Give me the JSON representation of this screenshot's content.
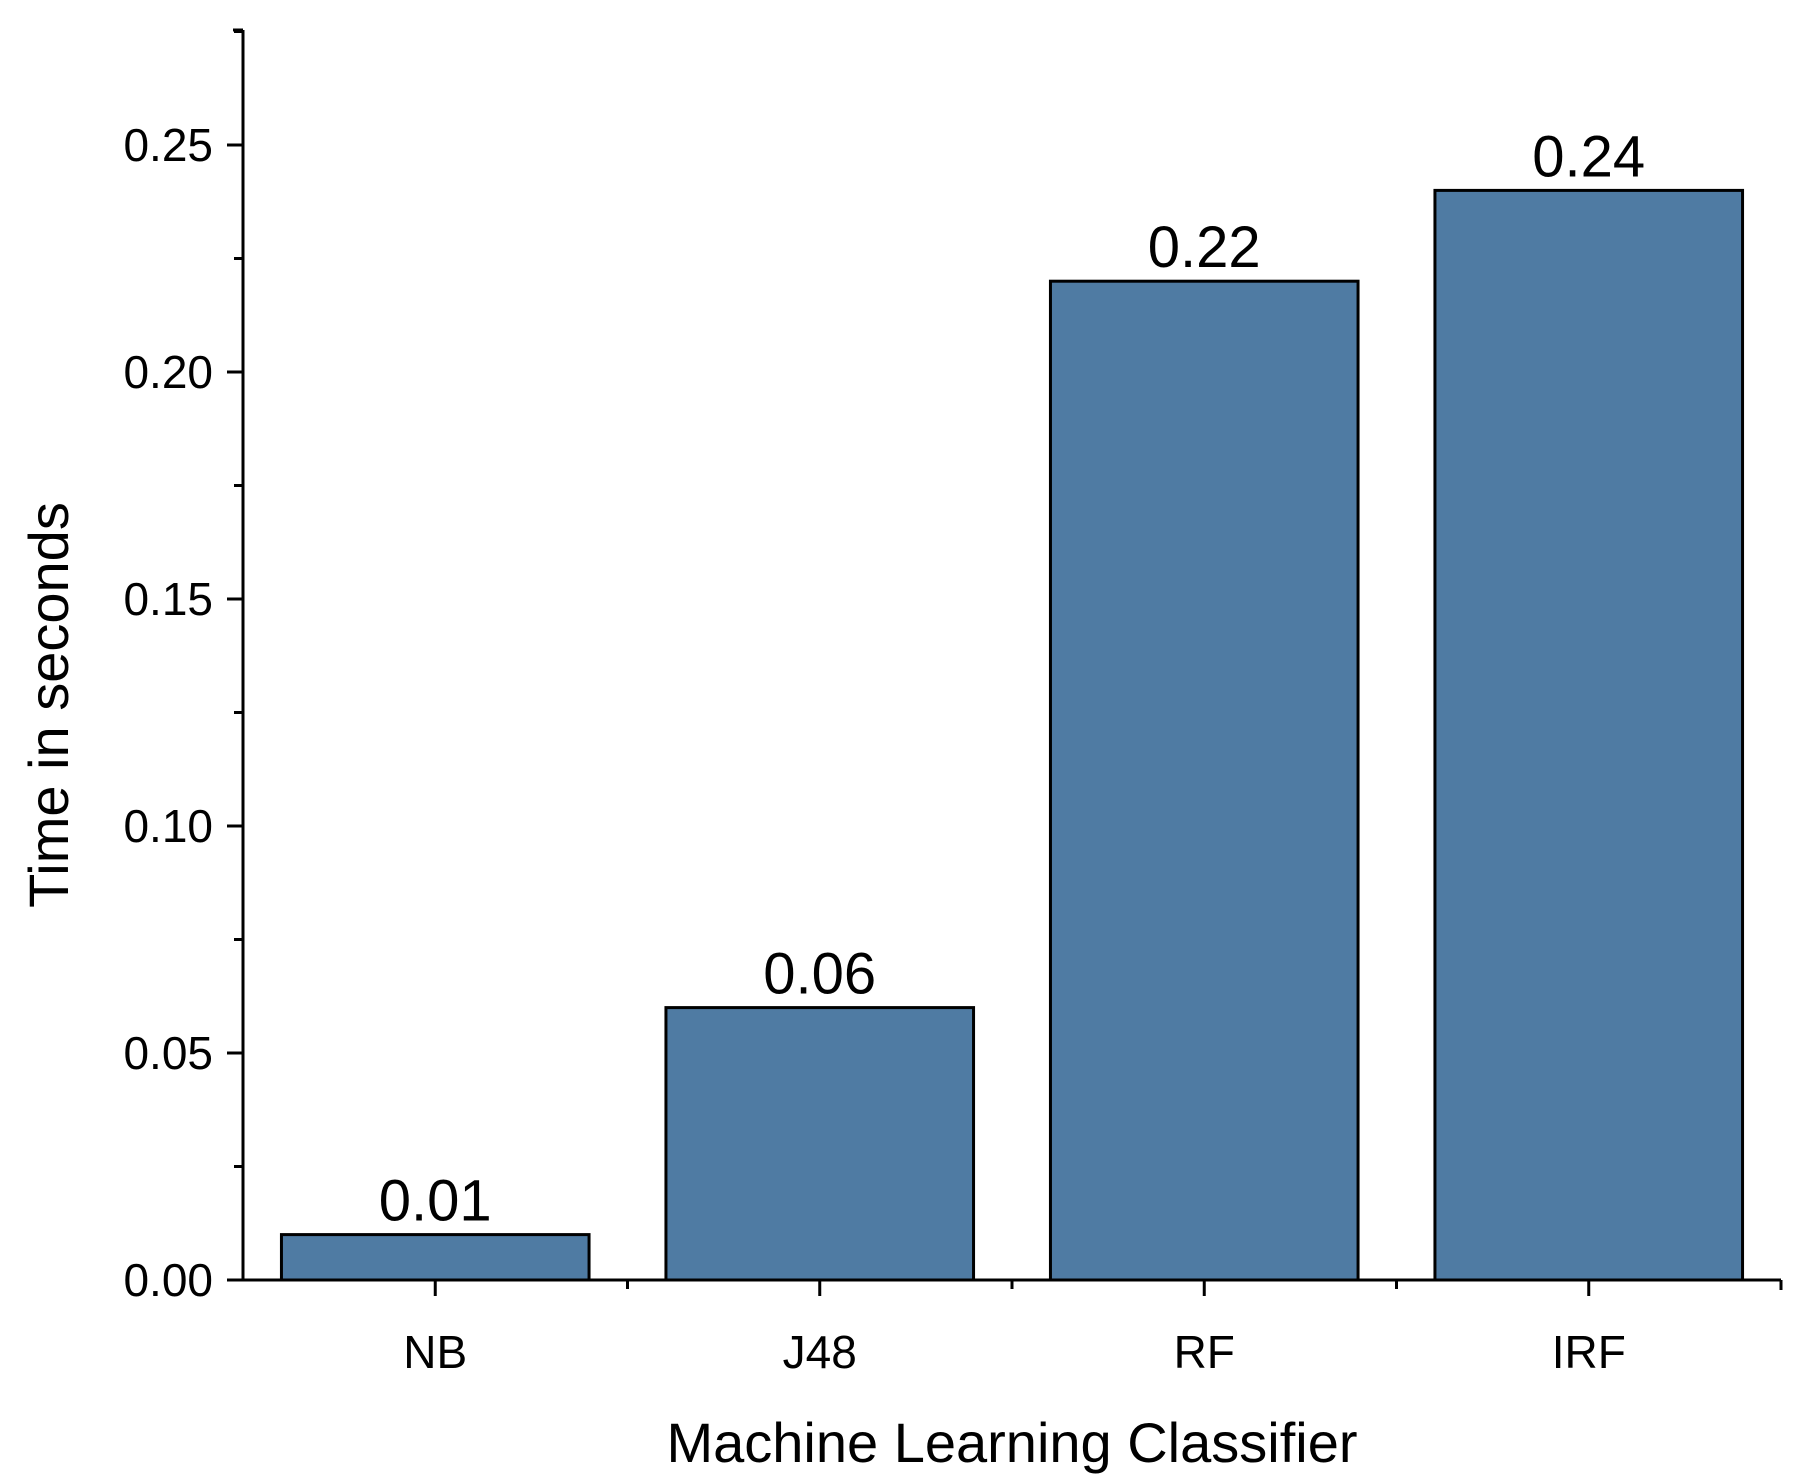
{
  "chart_data": {
    "type": "bar",
    "title": "",
    "xlabel": "Machine Learning Classifier",
    "ylabel": "Time in seconds",
    "categories": [
      "NB",
      "J48",
      "RF",
      "IRF"
    ],
    "values": [
      0.01,
      0.06,
      0.22,
      0.24
    ],
    "value_labels": [
      "0.01",
      "0.06",
      "0.22",
      "0.24"
    ],
    "ylim": [
      0,
      0.275
    ],
    "yticks": [
      0,
      0.05,
      0.1,
      0.15,
      0.2,
      0.25
    ],
    "ytick_labels": [
      "0.00",
      "0.05",
      "0.10",
      "0.15",
      "0.20",
      "0.25"
    ],
    "grid": false,
    "legend": "none",
    "bar_color": "#4f7ba3",
    "bar_edge_color": "#000000"
  }
}
